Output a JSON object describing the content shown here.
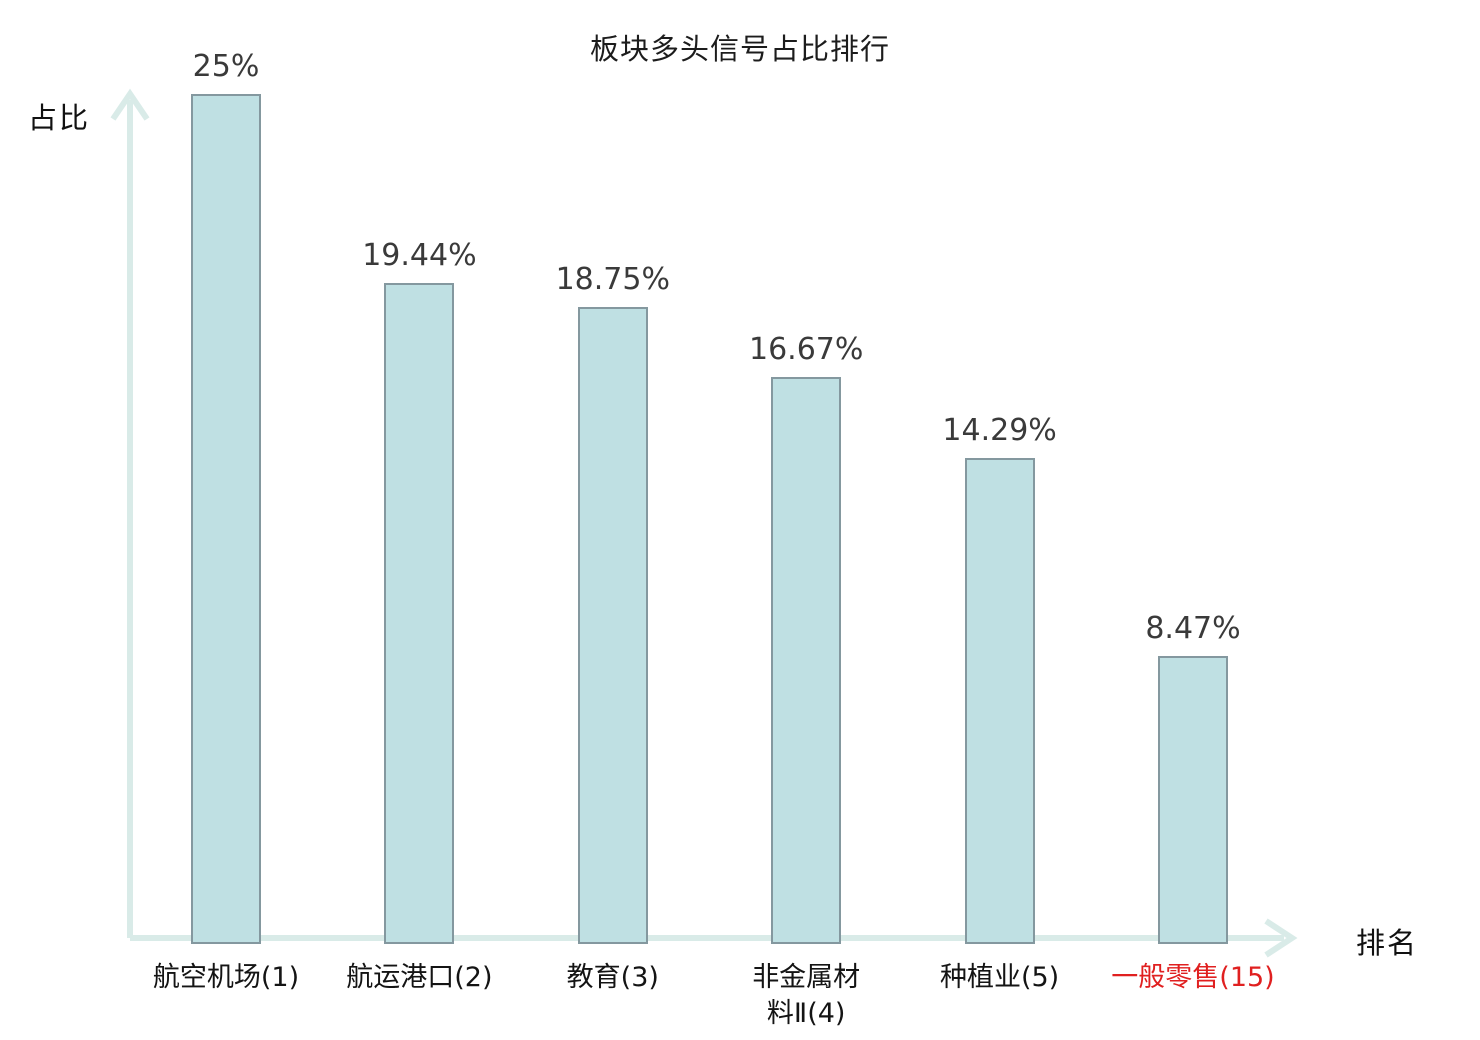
{
  "title": "板块多头信号占比排行",
  "axes": {
    "y_label": "占比",
    "x_label": "排名"
  },
  "chart_data": {
    "type": "bar",
    "title": "板块多头信号占比排行",
    "xlabel": "排名",
    "ylabel": "占比",
    "categories": [
      "航空机场(1)",
      "航运港口(2)",
      "教育(3)",
      "非金属材\n料Ⅱ(4)",
      "种植业(5)",
      "一般零售(15)"
    ],
    "values": [
      25,
      19.44,
      18.75,
      16.67,
      14.29,
      8.47
    ],
    "value_labels": [
      "25%",
      "19.44%",
      "18.75%",
      "16.67%",
      "14.29%",
      "8.47%"
    ],
    "highlight_index": 5,
    "highlight_color": "#e02020",
    "bar_fill": "#bfe0e3",
    "bar_border": "#84989f",
    "axis_color": "#d9ebe8",
    "ylim": [
      0,
      25
    ],
    "grid": false,
    "legend": "none"
  }
}
